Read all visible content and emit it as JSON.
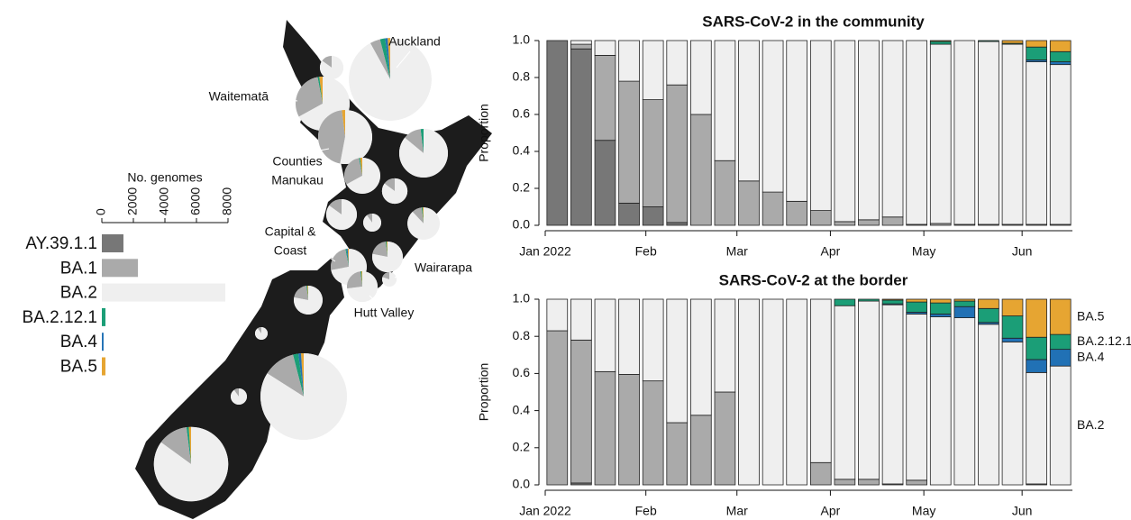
{
  "chart_data": [
    {
      "type": "barh",
      "xlabel": "No. genomes",
      "categories": [
        "AY.39.1.1",
        "BA.1",
        "BA.2",
        "BA.2.12.1",
        "BA.4",
        "BA.5"
      ],
      "values": [
        1370,
        2290,
        7830,
        230,
        110,
        230
      ],
      "colors": [
        "#777777",
        "#aaaaaa",
        "#efefef",
        "#1b9e77",
        "#2171b5",
        "#e6a532"
      ],
      "xlim": [
        0,
        8000
      ],
      "xticks": [
        0,
        2000,
        4000,
        6000,
        8000
      ]
    },
    {
      "type": "stacked_bar",
      "title": "SARS-CoV-2 in the community",
      "ylabel": "Proportion",
      "categories": [
        null,
        null,
        null,
        null,
        null,
        null,
        null,
        null,
        null,
        null,
        null,
        null,
        null,
        null,
        null,
        null,
        null,
        null,
        null,
        null,
        null,
        null
      ],
      "series": [
        {
          "name": "AY.39.1.1",
          "color": "#777777",
          "values": [
            1,
            0.955,
            0.46,
            0.12,
            0.1,
            0.015,
            0,
            0,
            0,
            0,
            0,
            0,
            0,
            0,
            0,
            0,
            0,
            0,
            0,
            0,
            0,
            0
          ]
        },
        {
          "name": "BA.1",
          "color": "#aaaaaa",
          "values": [
            0,
            0.025,
            0.46,
            0.66,
            0.58,
            0.745,
            0.6,
            0.35,
            0.24,
            0.18,
            0.13,
            0.08,
            0.02,
            0.03,
            0.045,
            0.005,
            0.01,
            0.005,
            0.005,
            0.005,
            0.005,
            0.005
          ]
        },
        {
          "name": "BA.2",
          "color": "#efefef",
          "values": [
            0,
            0.02,
            0.08,
            0.22,
            0.32,
            0.24,
            0.4,
            0.65,
            0.76,
            0.82,
            0.87,
            0.92,
            0.98,
            0.97,
            0.955,
            0.995,
            0.97,
            0.995,
            0.99,
            0.975,
            0.88,
            0.865
          ]
        },
        {
          "name": "BA.4",
          "color": "#2171b5",
          "values": [
            0,
            0,
            0,
            0,
            0,
            0,
            0,
            0,
            0,
            0,
            0,
            0,
            0,
            0,
            0,
            0,
            0,
            0,
            0,
            0,
            0.01,
            0.015
          ]
        },
        {
          "name": "BA.2.12.1",
          "color": "#1b9e77",
          "values": [
            0,
            0,
            0,
            0,
            0,
            0,
            0,
            0,
            0,
            0,
            0,
            0,
            0,
            0,
            0,
            0,
            0.015,
            0,
            0.005,
            0.005,
            0.07,
            0.055
          ]
        },
        {
          "name": "BA.5",
          "color": "#e6a532",
          "values": [
            0,
            0,
            0,
            0,
            0,
            0,
            0,
            0,
            0,
            0,
            0,
            0,
            0,
            0,
            0,
            0,
            0.005,
            0,
            0,
            0.015,
            0.035,
            0.06
          ]
        }
      ],
      "ylim": [
        0,
        1
      ],
      "yticks": [
        {
          "value": 0,
          "label": "0.0"
        },
        0.2,
        0.4,
        0.6,
        0.8,
        {
          "value": 1,
          "label": "1.0"
        }
      ],
      "xlim": [
        0,
        22
      ],
      "xticks": [
        {
          "value": 0,
          "label": "Jan 2022"
        },
        {
          "value": 4.2,
          "label": "Feb"
        },
        {
          "value": 8,
          "label": "Mar"
        },
        {
          "value": 11.9,
          "label": "Apr"
        },
        {
          "value": 15.8,
          "label": "May"
        },
        {
          "value": 19.9,
          "label": "Jun"
        }
      ]
    },
    {
      "type": "stacked_bar",
      "title": "SARS-CoV-2 at the border",
      "ylabel": "Proportion",
      "categories": [
        null,
        null,
        null,
        null,
        null,
        null,
        null,
        null,
        null,
        null,
        null,
        null,
        null,
        null,
        null,
        null,
        null,
        null,
        null,
        null,
        null,
        null
      ],
      "series": [
        {
          "name": "AY.39.1.1",
          "color": "#777777",
          "values": [
            0,
            0.01,
            0,
            0,
            0,
            0,
            0,
            0,
            0,
            0,
            0,
            0,
            0,
            0,
            0,
            0,
            0,
            0,
            0,
            0,
            0,
            0
          ]
        },
        {
          "name": "BA.1",
          "color": "#aaaaaa",
          "values": [
            0.83,
            0.77,
            0.61,
            0.595,
            0.56,
            0.335,
            0.375,
            0.5,
            0,
            0,
            0,
            0.12,
            0.03,
            0.03,
            0.005,
            0.025,
            0,
            0,
            0,
            0,
            0.005,
            0
          ]
        },
        {
          "name": "BA.2",
          "color": "#efefef",
          "values": [
            0.17,
            0.22,
            0.39,
            0.405,
            0.44,
            0.665,
            0.625,
            0.5,
            1,
            1,
            1,
            0.88,
            0.935,
            0.96,
            0.965,
            0.895,
            0.905,
            0.9,
            0.865,
            0.77,
            0.6,
            0.64
          ]
        },
        {
          "name": "BA.4",
          "color": "#2171b5",
          "values": [
            0,
            0,
            0,
            0,
            0,
            0,
            0,
            0,
            0,
            0,
            0,
            0,
            0,
            0,
            0.005,
            0.01,
            0.015,
            0.06,
            0.01,
            0.02,
            0.07,
            0.09
          ]
        },
        {
          "name": "BA.2.12.1",
          "color": "#1b9e77",
          "values": [
            0,
            0,
            0,
            0,
            0,
            0,
            0,
            0,
            0,
            0,
            0,
            0,
            0.035,
            0.01,
            0.02,
            0.055,
            0.06,
            0.03,
            0.075,
            0.12,
            0.12,
            0.08
          ]
        },
        {
          "name": "BA.5",
          "color": "#e6a532",
          "values": [
            0,
            0,
            0,
            0,
            0,
            0,
            0,
            0,
            0,
            0,
            0,
            0,
            0,
            0,
            0.005,
            0.015,
            0.02,
            0.01,
            0.05,
            0.09,
            0.205,
            0.19
          ]
        }
      ],
      "annotations": [
        "BA.5",
        "BA.2.12.1",
        "BA.4",
        "BA.2"
      ],
      "ylim": [
        0,
        1
      ],
      "yticks": [
        {
          "value": 0,
          "label": "0.0"
        },
        0.2,
        0.4,
        0.6,
        0.8,
        {
          "value": 1,
          "label": "1.0"
        }
      ],
      "xlim": [
        0,
        22
      ],
      "xticks": [
        {
          "value": 0,
          "label": "Jan 2022"
        },
        {
          "value": 4.2,
          "label": "Feb"
        },
        {
          "value": 8,
          "label": "Mar"
        },
        {
          "value": 11.9,
          "label": "Apr"
        },
        {
          "value": 15.8,
          "label": "May"
        },
        {
          "value": 19.9,
          "label": "Jun"
        }
      ]
    },
    {
      "type": "pie_map",
      "colors": [
        "#777777",
        "#aaaaaa",
        "#efefef",
        "#1b9e77",
        "#2171b5",
        "#e6a532"
      ],
      "pies": [
        {
          "label": null,
          "genomes": 170,
          "values": [
            0,
            0.15,
            0.85,
            0,
            0,
            0
          ]
        },
        {
          "label": [
            "Waitematā"
          ],
          "genomes": 900,
          "values": [
            0,
            0.3,
            0.67,
            0.01,
            0,
            0.02
          ]
        },
        {
          "label": [
            "Auckland"
          ],
          "genomes": 2100,
          "values": [
            0,
            0.04,
            0.92,
            0.02,
            0.01,
            0.01
          ]
        },
        {
          "label": [
            "Counties",
            "Manukau"
          ],
          "genomes": 900,
          "values": [
            0,
            0.45,
            0.53,
            0,
            0,
            0.02
          ]
        },
        {
          "label": null,
          "genomes": 400,
          "values": [
            0,
            0.3,
            0.67,
            0.01,
            0,
            0.02
          ]
        },
        {
          "label": null,
          "genomes": 730,
          "values": [
            0,
            0.12,
            0.86,
            0.02,
            0,
            0
          ]
        },
        {
          "label": null,
          "genomes": 200,
          "values": [
            0,
            0.15,
            0.85,
            0,
            0,
            0
          ]
        },
        {
          "label": null,
          "genomes": 290,
          "values": [
            0,
            0.15,
            0.85,
            0,
            0,
            0
          ]
        },
        {
          "label": null,
          "genomes": 100,
          "values": [
            0,
            0.1,
            0.9,
            0,
            0,
            0
          ]
        },
        {
          "label": null,
          "genomes": 320,
          "values": [
            0,
            0.1,
            0.88,
            0.01,
            0,
            0.01
          ]
        },
        {
          "label": null,
          "genomes": 290,
          "values": [
            0,
            0.2,
            0.78,
            0.01,
            0,
            0.01
          ]
        },
        {
          "label": [
            "Capital &",
            "Coast"
          ],
          "genomes": 400,
          "values": [
            0,
            0.25,
            0.72,
            0.01,
            0.01,
            0.01
          ]
        },
        {
          "label": [
            "Hutt Valley"
          ],
          "genomes": 290,
          "values": [
            0,
            0.25,
            0.73,
            0.01,
            0,
            0.01
          ]
        },
        {
          "label": [
            "Wairarapa"
          ],
          "genomes": 64,
          "values": [
            0,
            0.2,
            0.8,
            0,
            0,
            0
          ]
        },
        {
          "label": null,
          "genomes": 256,
          "values": [
            0,
            0.2,
            0.78,
            0.01,
            0,
            0.01
          ]
        },
        {
          "label": null,
          "genomes": 49,
          "values": [
            0,
            0.1,
            0.9,
            0,
            0,
            0
          ]
        },
        {
          "label": null,
          "genomes": 2300,
          "values": [
            0,
            0.12,
            0.84,
            0.02,
            0.01,
            0.01
          ]
        },
        {
          "label": null,
          "genomes": 81,
          "values": [
            0,
            0.1,
            0.9,
            0,
            0,
            0
          ]
        },
        {
          "label": null,
          "genomes": 1700,
          "values": [
            0,
            0.13,
            0.85,
            0.01,
            0,
            0.01
          ]
        }
      ]
    }
  ]
}
